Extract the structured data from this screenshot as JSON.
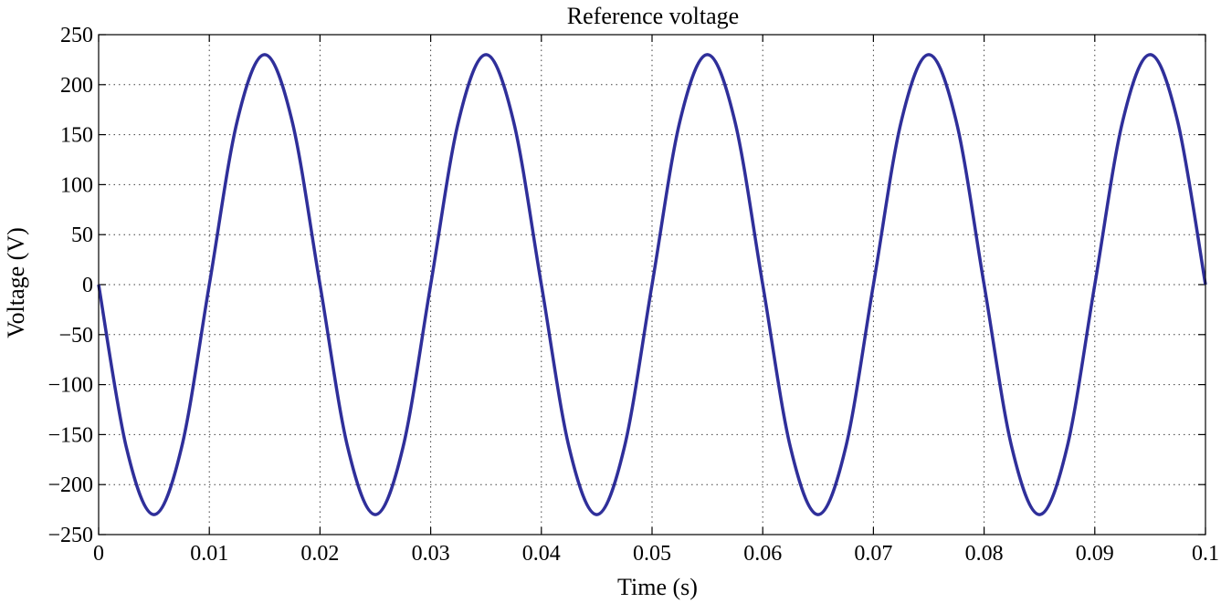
{
  "chart_data": {
    "type": "line",
    "title": "Reference voltage",
    "xlabel": "Time (s)",
    "ylabel": "Voltage (V)",
    "xlim": [
      0,
      0.1
    ],
    "ylim": [
      -250,
      250
    ],
    "grid": true,
    "x_ticks": [
      0,
      0.01,
      0.02,
      0.03,
      0.04,
      0.05,
      0.06,
      0.07,
      0.08,
      0.09,
      0.1
    ],
    "x_tick_labels": [
      "0",
      "0.01",
      "0.02",
      "0.03",
      "0.04",
      "0.05",
      "0.06",
      "0.07",
      "0.08",
      "0.09",
      "0.1"
    ],
    "y_ticks": [
      250,
      200,
      150,
      100,
      50,
      0,
      -50,
      -100,
      -150,
      -200,
      -250
    ],
    "y_tick_labels": [
      "250",
      "200",
      "150",
      "100",
      "50",
      "0",
      "−50",
      "−100",
      "−150",
      "−200",
      "−250"
    ],
    "series": [
      {
        "color": "#2f2f9a",
        "x": [
          0,
          0.0025,
          0.005,
          0.0075,
          0.01,
          0.0125,
          0.015,
          0.0175,
          0.02,
          0.0225,
          0.025,
          0.0275,
          0.03,
          0.0325,
          0.035,
          0.0375,
          0.04,
          0.0425,
          0.045,
          0.0475,
          0.05,
          0.0525,
          0.055,
          0.0575,
          0.06,
          0.0625,
          0.065,
          0.0675,
          0.07,
          0.0725,
          0.075,
          0.0775,
          0.08,
          0.0825,
          0.085,
          0.0875,
          0.09,
          0.0925,
          0.095,
          0.0975,
          0.1
        ],
        "y": [
          0,
          -162.6,
          -230,
          -162.6,
          0,
          162.6,
          230,
          162.6,
          0,
          -162.6,
          -230,
          -162.6,
          0,
          162.6,
          230,
          162.6,
          0,
          -162.6,
          -230,
          -162.6,
          0,
          162.6,
          230,
          162.6,
          0,
          -162.6,
          -230,
          -162.6,
          0,
          162.6,
          230,
          162.6,
          0,
          -162.6,
          -230,
          -162.6,
          0,
          162.6,
          230,
          162.6,
          0
        ]
      }
    ]
  }
}
